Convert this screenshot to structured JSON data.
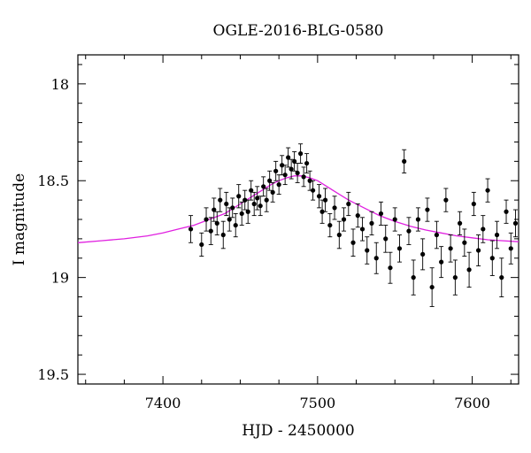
{
  "chart_data": {
    "type": "scatter",
    "title": "OGLE-2016-BLG-0580",
    "xlabel": "HJD - 2450000",
    "ylabel": "I magnitude",
    "xlim": [
      7345,
      7630
    ],
    "ylim": [
      19.55,
      17.85
    ],
    "y_inverted": true,
    "xticks": [
      7400,
      7500,
      7600
    ],
    "yticks": [
      18,
      18.5,
      19,
      19.5
    ],
    "grid": false,
    "colors": {
      "data": "#000000",
      "model": "#e020e0"
    },
    "series": [
      {
        "kind": "points_with_errorbars",
        "x": [
          7418,
          7425,
          7428,
          7431,
          7433,
          7435,
          7437,
          7439,
          7441,
          7443,
          7445,
          7447,
          7449,
          7451,
          7453,
          7455,
          7457,
          7459,
          7461,
          7463,
          7465,
          7467,
          7469,
          7471,
          7473,
          7475,
          7477,
          7479,
          7481,
          7483,
          7485,
          7487,
          7489,
          7491,
          7493,
          7495,
          7497,
          7501,
          7503,
          7505,
          7508,
          7511,
          7514,
          7517,
          7520,
          7523,
          7526,
          7529,
          7532,
          7535,
          7538,
          7541,
          7544,
          7547,
          7550,
          7553,
          7556,
          7559,
          7562,
          7565,
          7568,
          7571,
          7574,
          7577,
          7580,
          7583,
          7586,
          7589,
          7592,
          7595,
          7598,
          7601,
          7604,
          7607,
          7610,
          7613,
          7616,
          7619,
          7622,
          7625,
          7628
        ],
        "y": [
          18.75,
          18.83,
          18.7,
          18.76,
          18.65,
          18.72,
          18.6,
          18.78,
          18.62,
          18.7,
          18.64,
          18.73,
          18.58,
          18.67,
          18.6,
          18.66,
          18.55,
          18.62,
          18.59,
          18.63,
          18.53,
          18.6,
          18.5,
          18.56,
          18.45,
          18.52,
          18.42,
          18.47,
          18.38,
          18.44,
          18.4,
          18.46,
          18.36,
          18.48,
          18.41,
          18.5,
          18.55,
          18.58,
          18.66,
          18.6,
          18.73,
          18.64,
          18.78,
          18.7,
          18.62,
          18.82,
          18.68,
          18.75,
          18.86,
          18.72,
          18.9,
          18.67,
          18.8,
          18.95,
          18.7,
          18.85,
          18.4,
          18.76,
          19.0,
          18.7,
          18.88,
          18.65,
          19.05,
          18.78,
          18.92,
          18.6,
          18.85,
          19.0,
          18.72,
          18.82,
          18.96,
          18.62,
          18.86,
          18.75,
          18.55,
          18.9,
          18.78,
          19.0,
          18.66,
          18.85,
          18.72
        ],
        "err": [
          0.07,
          0.06,
          0.06,
          0.07,
          0.06,
          0.06,
          0.06,
          0.07,
          0.06,
          0.06,
          0.05,
          0.06,
          0.06,
          0.06,
          0.05,
          0.06,
          0.05,
          0.06,
          0.06,
          0.05,
          0.05,
          0.06,
          0.05,
          0.05,
          0.05,
          0.05,
          0.05,
          0.05,
          0.05,
          0.05,
          0.05,
          0.05,
          0.05,
          0.05,
          0.05,
          0.05,
          0.05,
          0.06,
          0.06,
          0.06,
          0.06,
          0.06,
          0.07,
          0.06,
          0.06,
          0.07,
          0.06,
          0.06,
          0.07,
          0.06,
          0.08,
          0.06,
          0.07,
          0.08,
          0.06,
          0.07,
          0.06,
          0.07,
          0.09,
          0.06,
          0.08,
          0.06,
          0.1,
          0.07,
          0.08,
          0.06,
          0.07,
          0.09,
          0.06,
          0.07,
          0.09,
          0.06,
          0.08,
          0.07,
          0.06,
          0.09,
          0.07,
          0.1,
          0.06,
          0.08,
          0.07
        ]
      },
      {
        "kind": "model_curve",
        "x": [
          7345,
          7360,
          7375,
          7390,
          7400,
          7410,
          7420,
          7430,
          7440,
          7450,
          7460,
          7470,
          7475,
          7480,
          7485,
          7490,
          7495,
          7500,
          7505,
          7510,
          7520,
          7530,
          7540,
          7550,
          7560,
          7570,
          7580,
          7590,
          7600,
          7610,
          7620,
          7630
        ],
        "y": [
          18.82,
          18.81,
          18.8,
          18.785,
          18.77,
          18.75,
          18.73,
          18.7,
          18.67,
          18.62,
          18.57,
          18.52,
          18.5,
          18.485,
          18.475,
          18.475,
          18.485,
          18.5,
          18.525,
          18.55,
          18.6,
          18.64,
          18.68,
          18.71,
          18.735,
          18.755,
          18.77,
          18.785,
          18.795,
          18.805,
          18.81,
          18.815
        ]
      }
    ]
  }
}
